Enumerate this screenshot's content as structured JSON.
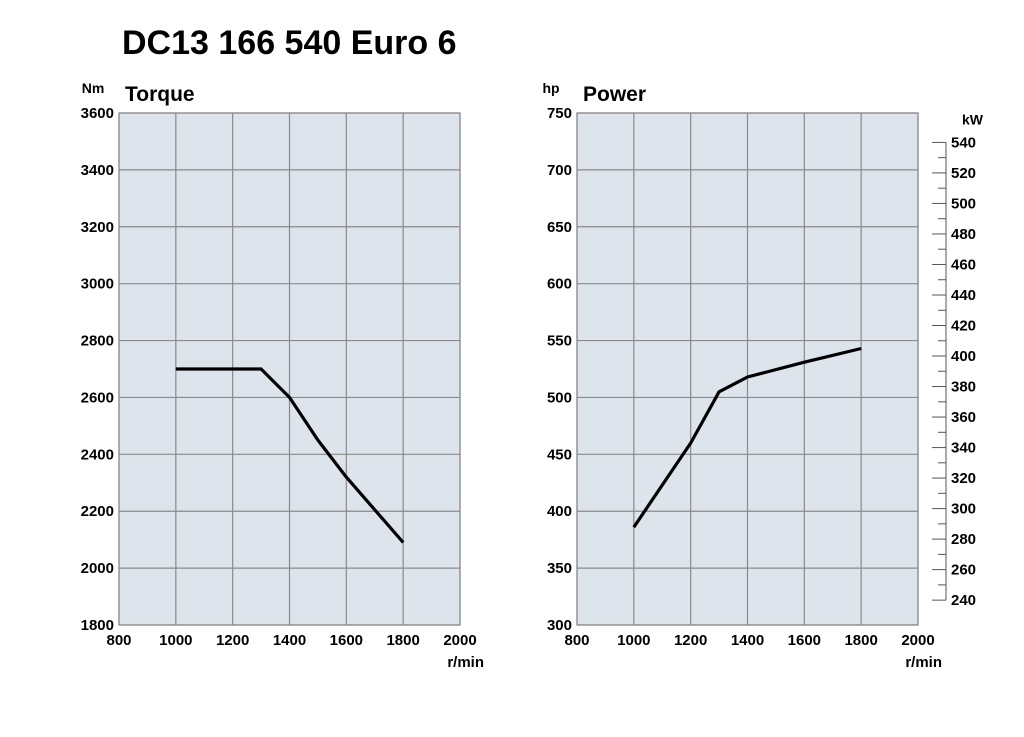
{
  "title": "DC13 166 540 Euro 6",
  "colors": {
    "plot_bg": "#dde4ec",
    "grid": "#8a8a8a",
    "line": "#000000"
  },
  "chart_data": [
    {
      "type": "line",
      "title": "Torque",
      "ylabel": "Nm",
      "xlabel": "r/min",
      "xlim": [
        800,
        2000
      ],
      "ylim": [
        1800,
        3600
      ],
      "xticks": [
        800,
        1000,
        1200,
        1400,
        1600,
        1800,
        2000
      ],
      "yticks": [
        1800,
        2000,
        2200,
        2400,
        2600,
        2800,
        3000,
        3200,
        3400,
        3600
      ],
      "grid": true,
      "series": [
        {
          "x": [
            1000,
            1300,
            1400,
            1500,
            1600,
            1800
          ],
          "y": [
            2700,
            2700,
            2600,
            2450,
            2320,
            2090
          ]
        }
      ]
    },
    {
      "type": "line",
      "title": "Power",
      "ylabel": "hp",
      "y2label": "kW",
      "xlabel": "r/min",
      "xlim": [
        800,
        2000
      ],
      "ylim": [
        300,
        750
      ],
      "xticks": [
        800,
        1000,
        1200,
        1400,
        1600,
        1800,
        2000
      ],
      "yticks": [
        300,
        350,
        400,
        450,
        500,
        550,
        600,
        650,
        700,
        750
      ],
      "y2ticks": [
        240,
        260,
        280,
        300,
        320,
        340,
        360,
        380,
        400,
        420,
        440,
        460,
        480,
        500,
        520,
        540
      ],
      "grid": true,
      "series": [
        {
          "x": [
            1000,
            1200,
            1300,
            1400,
            1600,
            1800
          ],
          "y": [
            386,
            460,
            505,
            518,
            531,
            543
          ]
        }
      ]
    }
  ]
}
